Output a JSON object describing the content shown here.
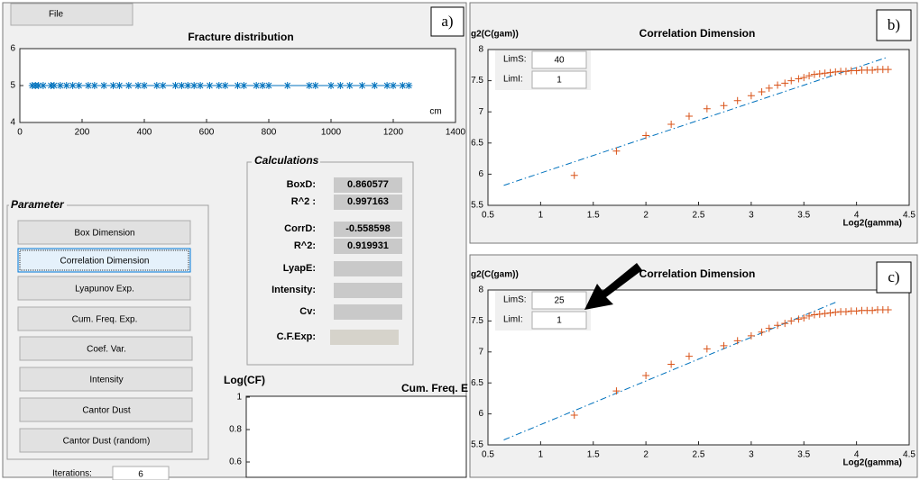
{
  "ui": {
    "file_menu": "File",
    "panel_label_a": "a)",
    "calculations": {
      "title": "Calculations",
      "rows": [
        {
          "label": "BoxD:",
          "value": 0.860577
        },
        {
          "label": "R^2 :",
          "value": 0.997163
        },
        {
          "label": "CorrD:",
          "value": -0.558598
        },
        {
          "label": "R^2:",
          "value": 0.919931
        },
        {
          "label": "LyapE:"
        },
        {
          "label": "Intensity:"
        },
        {
          "label": "Cv:"
        },
        {
          "label": "C.F.Exp:"
        }
      ]
    },
    "parameter": {
      "title": "Parameter",
      "buttons": [
        "Box Dimension",
        "Correlation Dimension",
        "Lyapunov Exp.",
        "Cum. Freq. Exp.",
        "Coef. Var.",
        "Intensity",
        "Cantor Dust",
        "Cantor Dust (random)"
      ],
      "selected": 1
    },
    "iterations": {
      "label": "Iterations:",
      "value": 6
    },
    "cf_plot": {
      "ylabel": "Log(CF)",
      "title": "Cum. Freq. E",
      "yticks": [
        1,
        0.8,
        0.6
      ]
    }
  },
  "chart_data": [
    {
      "type": "scatter",
      "title": "Fracture distribution",
      "xlabel": "cm",
      "marker": "*",
      "connect": true,
      "color": "#0072bd",
      "x": [
        40,
        50,
        60,
        75,
        100,
        110,
        130,
        150,
        170,
        190,
        220,
        240,
        270,
        300,
        320,
        350,
        380,
        400,
        440,
        460,
        500,
        520,
        540,
        560,
        580,
        610,
        640,
        660,
        700,
        720,
        760,
        780,
        800,
        860,
        930,
        950,
        1000,
        1030,
        1060,
        1100,
        1140,
        1180,
        1200,
        1230,
        1250
      ],
      "values": [
        5,
        5,
        5,
        5,
        5,
        5,
        5,
        5,
        5,
        5,
        5,
        5,
        5,
        5,
        5,
        5,
        5,
        5,
        5,
        5,
        5,
        5,
        5,
        5,
        5,
        5,
        5,
        5,
        5,
        5,
        5,
        5,
        5,
        5,
        5,
        5,
        5,
        5,
        5,
        5,
        5,
        5,
        5,
        5,
        5
      ],
      "xlim": [
        0,
        1400
      ],
      "xticks": [
        0,
        200,
        400,
        600,
        800,
        1000,
        1200,
        1400
      ],
      "ylim": [
        4,
        6
      ],
      "yticks": [
        4,
        5,
        6
      ]
    },
    {
      "type": "scatter",
      "title": "Correlation Dimension",
      "panel_label": "b)",
      "ylabel": "g2(C(gam))",
      "xlabel": "Log2(gamma)",
      "marker": "+",
      "color": "#d95319",
      "x": [
        1.32,
        1.72,
        2.0,
        2.24,
        2.41,
        2.58,
        2.74,
        2.87,
        3.0,
        3.1,
        3.17,
        3.25,
        3.32,
        3.38,
        3.45,
        3.5,
        3.55,
        3.6,
        3.65,
        3.7,
        3.75,
        3.8,
        3.85,
        3.9,
        3.95,
        4.0,
        4.05,
        4.1,
        4.15,
        4.2,
        4.25,
        4.3
      ],
      "values": [
        5.98,
        6.37,
        6.62,
        6.8,
        6.93,
        7.05,
        7.1,
        7.18,
        7.26,
        7.32,
        7.38,
        7.43,
        7.46,
        7.5,
        7.53,
        7.55,
        7.58,
        7.6,
        7.61,
        7.62,
        7.63,
        7.64,
        7.65,
        7.65,
        7.66,
        7.66,
        7.67,
        7.67,
        7.67,
        7.68,
        7.68,
        7.68
      ],
      "fit_x": [
        0.65,
        4.3
      ],
      "fit_values": [
        5.82,
        7.88
      ],
      "fit_color": "#0072bd",
      "xlim": [
        0.5,
        4.5
      ],
      "xticks": [
        0.5,
        1,
        1.5,
        2,
        2.5,
        3,
        3.5,
        4,
        4.5
      ],
      "ylim": [
        5.5,
        8
      ],
      "yticks": [
        5.5,
        6,
        6.5,
        7,
        7.5,
        8
      ],
      "lim_s_label": "LimS:",
      "lim_s": 40,
      "lim_i_label": "LimI:",
      "lim_i": 1
    },
    {
      "type": "scatter",
      "title": "Correlation Dimension",
      "panel_label": "c)",
      "ylabel": "g2(C(gam))",
      "xlabel": "Log2(gamma)",
      "marker": "+",
      "color": "#d95319",
      "x": [
        1.32,
        1.72,
        2.0,
        2.24,
        2.41,
        2.58,
        2.74,
        2.87,
        3.0,
        3.1,
        3.17,
        3.25,
        3.32,
        3.38,
        3.45,
        3.5,
        3.55,
        3.6,
        3.65,
        3.7,
        3.75,
        3.8,
        3.85,
        3.9,
        3.95,
        4.0,
        4.05,
        4.1,
        4.15,
        4.2,
        4.25,
        4.3
      ],
      "values": [
        5.98,
        6.37,
        6.62,
        6.8,
        6.93,
        7.05,
        7.1,
        7.18,
        7.26,
        7.32,
        7.38,
        7.43,
        7.46,
        7.5,
        7.53,
        7.55,
        7.58,
        7.6,
        7.61,
        7.62,
        7.63,
        7.64,
        7.65,
        7.65,
        7.66,
        7.66,
        7.67,
        7.67,
        7.67,
        7.68,
        7.68,
        7.68
      ],
      "fit_x": [
        0.65,
        3.8
      ],
      "fit_values": [
        5.58,
        7.8
      ],
      "fit_color": "#0072bd",
      "xlim": [
        0.5,
        4.5
      ],
      "xticks": [
        0.5,
        1,
        1.5,
        2,
        2.5,
        3,
        3.5,
        4,
        4.5
      ],
      "ylim": [
        5.5,
        8
      ],
      "yticks": [
        5.5,
        6,
        6.5,
        7,
        7.5,
        8
      ],
      "lim_s_label": "LimS:",
      "lim_s": 25,
      "lim_i_label": "LimI:",
      "lim_i": 1
    }
  ]
}
